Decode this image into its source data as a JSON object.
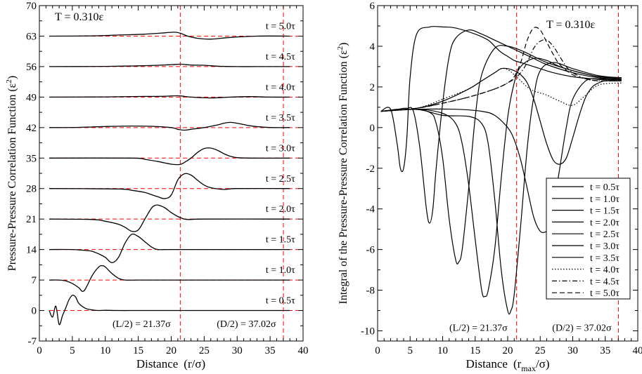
{
  "chart_data": [
    {
      "type": "line",
      "panel": "left",
      "title": "T = 0.310ε",
      "xlabel": "Distance",
      "xlabel_unit": "(r/σ)",
      "ylabel": "Pressure-Pressure  Correlation  Function  (ε",
      "ylabel_sup": "2",
      "ylabel_end": ")",
      "xlim": [
        0,
        40
      ],
      "ylim": [
        -7,
        70
      ],
      "xticks": [
        "0",
        "5",
        "10",
        "15",
        "20",
        "25",
        "30",
        "35",
        "40"
      ],
      "xtick_values": [
        0,
        5,
        10,
        15,
        20,
        25,
        30,
        35,
        40
      ],
      "yticks": [
        "-7",
        "0",
        "7",
        "14",
        "21",
        "28",
        "35",
        "42",
        "49",
        "56",
        "63",
        "70"
      ],
      "ytick_values": [
        -7,
        0,
        7,
        14,
        21,
        28,
        35,
        42,
        49,
        56,
        63,
        70
      ],
      "vlines": [
        21.37,
        37.02
      ],
      "annotations": [
        {
          "text": "(L/2) = 21.37σ",
          "x": 15.5,
          "y": -3.8
        },
        {
          "text": "(D/2) = 37.02σ",
          "x": 31.4,
          "y": -3.8
        }
      ],
      "series": [
        {
          "name": "t = 0.5τ",
          "offset": 0,
          "label_y": 1.6,
          "x": [
            1.5,
            2.0,
            2.5,
            3.0,
            3.5,
            4.0,
            4.5,
            5.0,
            5.5,
            6.0,
            7.0,
            8.0,
            9.0,
            10.0,
            12.0,
            15.0,
            20.0,
            30.0,
            38.0
          ],
          "y": [
            0.0,
            -1.5,
            1.0,
            -3.2,
            -1.2,
            0.6,
            2.5,
            3.5,
            3.1,
            1.6,
            0.5,
            0.15,
            0.0,
            0.05,
            0.0,
            0.0,
            0.0,
            0.0,
            0.0
          ]
        },
        {
          "name": "t = 1.0τ",
          "offset": 7,
          "label_y": 8.6,
          "x": [
            1.5,
            3.0,
            4.0,
            5.0,
            6.0,
            6.5,
            7.0,
            8.0,
            9.0,
            9.5,
            10.0,
            11.0,
            12.0,
            13.0,
            15.0,
            20.0,
            38.0
          ],
          "y": [
            0.0,
            0.0,
            -0.2,
            -0.8,
            -1.8,
            -2.6,
            -2.0,
            1.0,
            3.0,
            3.3,
            3.0,
            1.5,
            0.4,
            0.0,
            0.0,
            0.0,
            0.0
          ]
        },
        {
          "name": "t = 1.5τ",
          "offset": 14,
          "label_y": 15.6,
          "x": [
            1.5,
            5.0,
            7.0,
            8.0,
            9.0,
            10.0,
            11.0,
            12.0,
            13.0,
            14.0,
            15.0,
            16.0,
            17.0,
            18.0,
            20.0,
            38.0
          ],
          "y": [
            0.0,
            0.0,
            -0.2,
            -0.4,
            -1.0,
            -1.8,
            -3.0,
            -1.8,
            1.5,
            3.5,
            3.0,
            1.8,
            0.6,
            0.0,
            0.0,
            0.0
          ]
        },
        {
          "name": "t = 2.0τ",
          "offset": 21,
          "label_y": 22.6,
          "x": [
            1.5,
            8.0,
            10.0,
            12.0,
            13.0,
            14.0,
            15.0,
            16.0,
            17.0,
            17.5,
            18.0,
            19.0,
            20.0,
            21.0,
            22.0,
            23.0,
            25.0,
            38.0
          ],
          "y": [
            0.0,
            -0.1,
            -0.5,
            -1.2,
            -1.9,
            -2.8,
            -2.5,
            0.0,
            2.5,
            3.1,
            3.2,
            2.6,
            1.5,
            0.6,
            0.0,
            -0.1,
            0.0,
            0.0
          ]
        },
        {
          "name": "t = 2.5τ",
          "offset": 28,
          "label_y": 29.6,
          "x": [
            1.5,
            12.0,
            14.0,
            16.0,
            17.0,
            18.0,
            19.0,
            20.0,
            21.0,
            22.0,
            23.0,
            24.0,
            25.0,
            26.0,
            28.0,
            30.0,
            38.0
          ],
          "y": [
            0.0,
            -0.1,
            -0.4,
            -0.9,
            -1.4,
            -1.9,
            -2.3,
            -1.5,
            2.0,
            3.4,
            3.1,
            1.9,
            0.8,
            0.2,
            -0.2,
            0.0,
            0.0
          ]
        },
        {
          "name": "t = 3.0τ",
          "offset": 35,
          "label_y": 36.6,
          "x": [
            1.5,
            14.0,
            16.0,
            18.0,
            19.0,
            20.0,
            21.0,
            21.5,
            22.0,
            23.0,
            24.0,
            25.0,
            26.0,
            27.0,
            28.0,
            29.0,
            30.0,
            32.0,
            38.0
          ],
          "y": [
            0.0,
            0.0,
            -0.3,
            -0.8,
            -1.1,
            -1.4,
            -1.5,
            -1.4,
            -1.0,
            0.0,
            1.3,
            2.2,
            2.3,
            1.8,
            1.0,
            0.4,
            0.1,
            0.0,
            0.0
          ]
        },
        {
          "name": "t = 3.5τ",
          "offset": 42,
          "label_y": 43.6,
          "x": [
            1.5,
            6.0,
            10.0,
            14.0,
            17.0,
            20.0,
            21.0,
            22.0,
            23.0,
            25.0,
            27.0,
            28.0,
            29.0,
            30.0,
            32.0,
            34.0,
            35.5,
            38.0
          ],
          "y": [
            0.0,
            0.05,
            0.25,
            0.35,
            0.3,
            0.0,
            -0.4,
            -0.6,
            -0.4,
            0.0,
            0.6,
            1.0,
            1.2,
            1.0,
            0.4,
            0.1,
            0.0,
            0.0
          ]
        },
        {
          "name": "t = 4.0τ",
          "offset": 49,
          "label_y": 50.6,
          "x": [
            1.5,
            10.0,
            16.0,
            19.0,
            21.0,
            23.0,
            26.0,
            29.0,
            32.0,
            35.0,
            38.0
          ],
          "y": [
            0.0,
            0.05,
            0.15,
            0.2,
            0.3,
            0.0,
            -0.2,
            0.0,
            0.1,
            0.0,
            0.0
          ]
        },
        {
          "name": "t = 4.5τ",
          "offset": 56,
          "label_y": 57.6,
          "x": [
            1.5,
            10.0,
            14.0,
            18.0,
            20.0,
            21.5,
            23.0,
            25.0,
            27.0,
            30.0,
            33.0,
            38.0
          ],
          "y": [
            0.0,
            0.05,
            0.15,
            0.3,
            0.45,
            0.55,
            0.35,
            0.3,
            0.1,
            0.0,
            0.0,
            0.0
          ]
        },
        {
          "name": "t = 5.0τ",
          "offset": 63,
          "label_y": 64.6,
          "x": [
            1.5,
            8.0,
            12.0,
            16.0,
            19.0,
            20.5,
            21.5,
            22.5,
            24.0,
            26.0,
            29.0,
            33.0,
            38.0
          ],
          "y": [
            0.0,
            0.05,
            0.25,
            0.45,
            0.75,
            0.9,
            0.6,
            0.0,
            -0.5,
            -0.7,
            -0.3,
            0.0,
            0.0
          ]
        }
      ]
    },
    {
      "type": "line",
      "panel": "right",
      "title": "T = 0.310ε",
      "xlabel": "Distance",
      "xlabel_unit_pre": "(r",
      "xlabel_unit_sub": "max",
      "xlabel_unit_post": "/σ)",
      "ylabel": "Integral of the Pressure-Pressure Correlation Function (ε",
      "ylabel_sup": "2",
      "ylabel_end": ")",
      "xlim": [
        0,
        40
      ],
      "ylim": [
        -10.5,
        6
      ],
      "xticks": [
        "0",
        "5",
        "10",
        "15",
        "20",
        "25",
        "30",
        "35",
        "40"
      ],
      "xtick_values": [
        0,
        5,
        10,
        15,
        20,
        25,
        30,
        35,
        40
      ],
      "yticks": [
        "-10",
        "-8",
        "-6",
        "-4",
        "-2",
        "0",
        "2",
        "4",
        "6"
      ],
      "ytick_values": [
        -10,
        -8,
        -6,
        -4,
        -2,
        0,
        2,
        4,
        6
      ],
      "vlines": [
        21.37,
        37.02
      ],
      "annotations": [
        {
          "text": "(L/2) = 21.37σ",
          "x": 15.5,
          "y": -10.0
        },
        {
          "text": "(D/2) = 37.02σ",
          "x": 31.4,
          "y": -10.0
        }
      ],
      "series": [
        {
          "name": "t = 0.5τ",
          "style": "solid",
          "x": [
            0.5,
            2.0,
            3.0,
            3.5,
            4.0,
            4.5,
            5.0,
            6.0,
            8.0,
            10.0,
            12.0,
            15.0,
            17.0,
            18.0,
            19.0,
            20.0,
            21.0,
            22.0,
            24.0,
            27.0,
            30.0,
            33.0,
            35.0,
            37.5
          ],
          "y": [
            0.8,
            0.9,
            -0.8,
            -2.0,
            -2.0,
            -0.5,
            2.5,
            4.6,
            4.95,
            4.95,
            4.9,
            4.6,
            4.3,
            4.0,
            3.7,
            3.5,
            3.3,
            3.2,
            3.0,
            2.7,
            2.5,
            2.4,
            2.35,
            2.35
          ]
        },
        {
          "name": "t = 1.0τ",
          "style": "solid",
          "x": [
            0.5,
            3.0,
            4.5,
            5.5,
            6.5,
            7.5,
            8.0,
            8.5,
            9.0,
            10.0,
            11.0,
            12.0,
            14.0,
            16.0,
            18.0,
            20.0,
            22.0,
            24.0,
            26.0,
            30.0,
            34.0,
            37.5
          ],
          "y": [
            0.8,
            0.9,
            0.95,
            0.8,
            -1.0,
            -4.0,
            -4.7,
            -4.0,
            -2.0,
            1.2,
            3.5,
            4.4,
            4.8,
            4.6,
            4.3,
            4.0,
            3.7,
            3.4,
            3.1,
            2.7,
            2.45,
            2.4
          ]
        },
        {
          "name": "t = 1.5τ",
          "style": "solid",
          "x": [
            0.5,
            5.0,
            8.0,
            9.0,
            10.0,
            11.0,
            12.0,
            12.5,
            13.0,
            14.0,
            15.0,
            16.0,
            18.0,
            20.0,
            22.0,
            24.0,
            26.0,
            30.0,
            34.0,
            37.5
          ],
          "y": [
            0.8,
            0.9,
            0.75,
            0.2,
            -1.5,
            -4.5,
            -6.5,
            -6.6,
            -6.0,
            -3.0,
            0.5,
            2.6,
            3.9,
            4.0,
            3.8,
            3.5,
            3.2,
            2.8,
            2.5,
            2.45
          ]
        },
        {
          "name": "t = 2.0τ",
          "style": "solid",
          "x": [
            0.5,
            6.0,
            10.0,
            12.0,
            13.0,
            14.0,
            15.0,
            16.0,
            16.5,
            17.0,
            18.0,
            19.0,
            20.0,
            21.0,
            22.0,
            24.0,
            26.0,
            28.0,
            30.0,
            34.0,
            37.5
          ],
          "y": [
            0.8,
            0.9,
            0.7,
            0.2,
            -0.8,
            -2.8,
            -5.5,
            -8.0,
            -8.3,
            -8.0,
            -6.0,
            -2.5,
            0.5,
            2.2,
            3.0,
            3.4,
            3.3,
            3.0,
            2.8,
            2.5,
            2.45
          ]
        },
        {
          "name": "t = 2.5τ",
          "style": "solid",
          "x": [
            0.5,
            6.0,
            10.0,
            14.0,
            16.0,
            17.0,
            18.0,
            19.0,
            20.0,
            20.5,
            21.0,
            22.0,
            23.0,
            24.0,
            25.0,
            27.0,
            30.0,
            34.0,
            37.5
          ],
          "y": [
            0.8,
            0.9,
            0.6,
            0.55,
            0.2,
            -0.8,
            -3.5,
            -7.0,
            -9.0,
            -9.0,
            -8.2,
            -4.8,
            -1.0,
            1.5,
            2.8,
            3.2,
            2.9,
            2.55,
            2.45
          ]
        },
        {
          "name": "t = 3.0τ",
          "style": "solid",
          "x": [
            0.5,
            6.0,
            12.0,
            16.0,
            18.0,
            20.0,
            21.0,
            22.0,
            23.0,
            24.0,
            25.0,
            26.0,
            26.5,
            27.0,
            28.0,
            29.0,
            30.0,
            32.0,
            34.0,
            37.5
          ],
          "y": [
            0.8,
            0.9,
            0.9,
            0.8,
            0.6,
            0.0,
            -0.6,
            -1.6,
            -3.0,
            -4.4,
            -5.1,
            -5.1,
            -4.8,
            -4.0,
            -2.0,
            0.0,
            1.4,
            2.3,
            2.4,
            2.35
          ]
        },
        {
          "name": "t = 3.5τ",
          "style": "solid",
          "x": [
            0.5,
            6.0,
            10.0,
            14.0,
            16.0,
            18.0,
            19.0,
            20.0,
            21.0,
            22.0,
            23.0,
            24.0,
            25.0,
            26.0,
            27.0,
            28.0,
            29.0,
            30.0,
            31.0,
            32.0,
            33.0,
            34.0,
            35.0,
            37.5
          ],
          "y": [
            0.8,
            0.95,
            1.3,
            1.9,
            2.3,
            2.7,
            2.9,
            2.9,
            2.8,
            2.6,
            2.2,
            1.4,
            0.3,
            -0.8,
            -1.6,
            -1.8,
            -1.5,
            -0.5,
            0.6,
            1.5,
            2.0,
            2.2,
            2.3,
            2.3
          ]
        },
        {
          "name": "t = 4.0τ",
          "style": "dotted",
          "x": [
            0.5,
            6.0,
            10.0,
            14.0,
            16.0,
            18.0,
            19.0,
            20.0,
            21.0,
            22.0,
            23.0,
            24.0,
            25.0,
            26.0,
            28.0,
            30.0,
            32.0,
            34.0,
            37.5
          ],
          "y": [
            0.8,
            0.95,
            1.4,
            1.9,
            2.3,
            2.7,
            2.9,
            2.85,
            2.6,
            2.3,
            2.0,
            1.8,
            1.7,
            1.6,
            1.3,
            1.1,
            1.6,
            2.1,
            2.2
          ]
        },
        {
          "name": "t = 4.5τ",
          "style": "dashdot",
          "x": [
            0.5,
            6.0,
            10.0,
            14.0,
            18.0,
            20.0,
            21.0,
            22.0,
            23.0,
            24.0,
            25.0,
            26.0,
            27.0,
            28.0,
            29.0,
            30.0,
            32.0,
            34.0,
            37.5
          ],
          "y": [
            0.8,
            0.95,
            1.2,
            1.5,
            1.9,
            2.2,
            2.4,
            2.7,
            3.2,
            3.9,
            4.25,
            4.3,
            4.0,
            3.5,
            3.0,
            2.7,
            2.4,
            2.3,
            2.3
          ]
        },
        {
          "name": "t = 5.0τ",
          "style": "dashed",
          "x": [
            0.5,
            6.0,
            10.0,
            14.0,
            18.0,
            20.0,
            21.0,
            22.0,
            23.0,
            24.0,
            25.0,
            26.0,
            27.0,
            28.0,
            30.0,
            32.0,
            34.0,
            37.5
          ],
          "y": [
            0.8,
            0.95,
            1.2,
            1.5,
            1.9,
            2.2,
            2.5,
            3.2,
            4.3,
            4.9,
            4.8,
            4.2,
            3.6,
            3.1,
            2.6,
            2.4,
            2.3,
            2.3
          ]
        }
      ]
    }
  ]
}
